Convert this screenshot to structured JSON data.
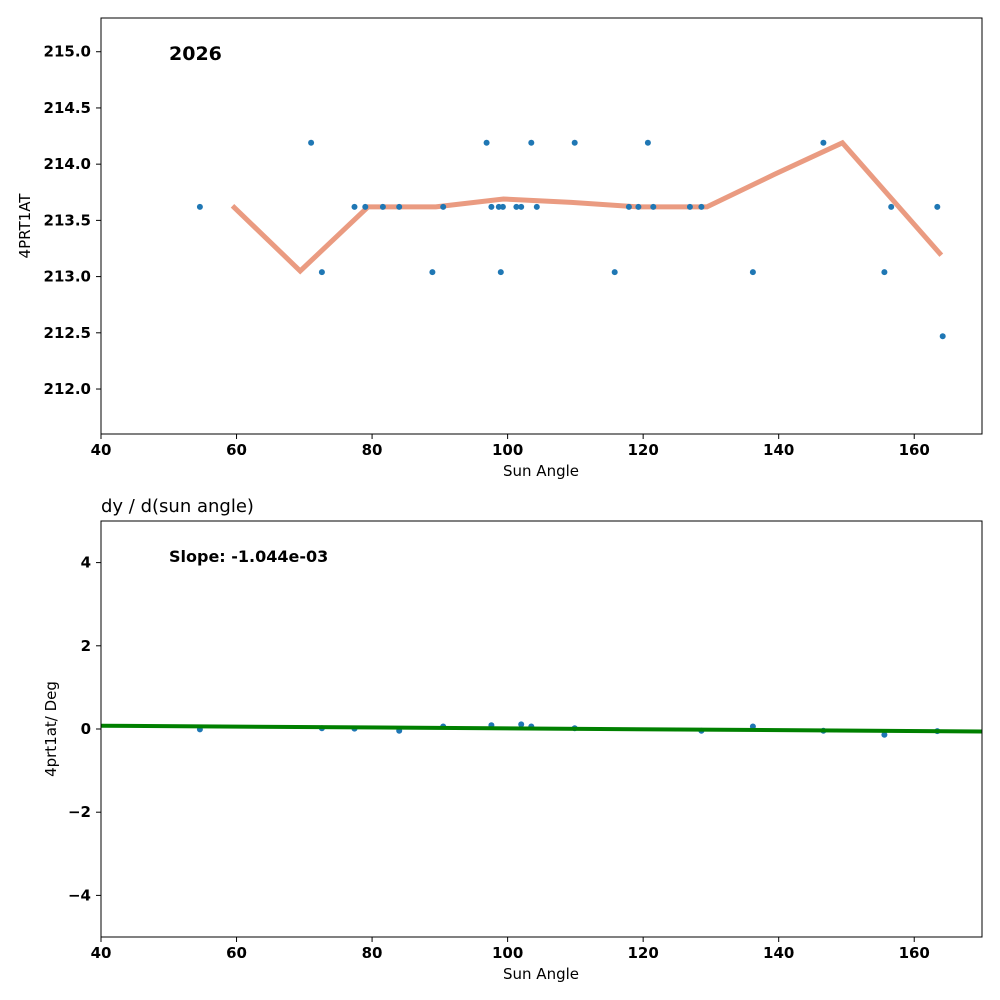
{
  "chart_data": [
    {
      "type": "scatter",
      "title": "",
      "annotation": "2026",
      "xlabel": "Sun Angle",
      "ylabel": "4PRT1AT",
      "xlim": [
        40,
        170
      ],
      "ylim": [
        211.6,
        215.3
      ],
      "xticks": [
        "40",
        "60",
        "80",
        "100",
        "120",
        "140",
        "160"
      ],
      "yticks": [
        "212.0",
        "212.5",
        "213.0",
        "213.5",
        "214.0",
        "214.5",
        "215.0"
      ],
      "grid": false,
      "colors": {
        "points": "#1f77b4",
        "trend": "#e9967a"
      },
      "series": [
        {
          "kind": "points",
          "x": [
            54.6,
            71.0,
            72.6,
            77.4,
            79.0,
            81.6,
            84.0,
            88.9,
            90.5,
            96.9,
            97.6,
            98.7,
            99.0,
            99.3,
            101.3,
            102.0,
            103.5,
            104.3,
            109.9,
            115.8,
            117.9,
            119.3,
            120.7,
            121.5,
            126.9,
            128.6,
            136.2,
            146.6,
            155.6,
            156.6,
            163.4,
            164.2
          ],
          "y": [
            213.62,
            214.19,
            213.04,
            213.62,
            213.62,
            213.62,
            213.62,
            213.04,
            213.62,
            214.19,
            213.62,
            213.62,
            213.04,
            213.62,
            213.62,
            213.62,
            214.19,
            213.62,
            214.19,
            213.04,
            213.62,
            213.62,
            214.19,
            213.62,
            213.62,
            213.62,
            213.04,
            214.19,
            213.04,
            213.62,
            213.62,
            212.47
          ]
        },
        {
          "kind": "line",
          "x": [
            59.4,
            69.4,
            79.4,
            89.4,
            99.4,
            109.4,
            119.4,
            129.4,
            139.4,
            149.4,
            164.0
          ],
          "y": [
            213.63,
            213.05,
            213.62,
            213.62,
            213.69,
            213.66,
            213.62,
            213.62,
            213.91,
            214.19,
            213.19
          ]
        }
      ]
    },
    {
      "type": "scatter",
      "title": "dy / d(sun angle)",
      "annotation": "Slope: -1.044e-03",
      "xlabel": "Sun Angle",
      "ylabel": "4prt1at/ Deg",
      "xlim": [
        40,
        170
      ],
      "ylim": [
        -5,
        5
      ],
      "xticks": [
        "40",
        "60",
        "80",
        "100",
        "120",
        "140",
        "160"
      ],
      "yticks": [
        "−4",
        "−2",
        "0",
        "2",
        "4"
      ],
      "grid": false,
      "colors": {
        "points": "#1f77b4",
        "trend": "#008000"
      },
      "series": [
        {
          "kind": "points",
          "x": [
            54.6,
            72.6,
            77.4,
            84.0,
            90.5,
            97.6,
            102.0,
            103.5,
            109.9,
            128.6,
            136.2,
            146.6,
            155.6,
            163.4
          ],
          "y": [
            -0.01,
            0.02,
            0.01,
            -0.04,
            0.06,
            0.09,
            0.11,
            0.06,
            0.02,
            -0.04,
            0.06,
            -0.04,
            -0.14,
            -0.05
          ]
        },
        {
          "kind": "line",
          "x": [
            40,
            170
          ],
          "y": [
            0.08,
            -0.06
          ]
        }
      ]
    }
  ]
}
